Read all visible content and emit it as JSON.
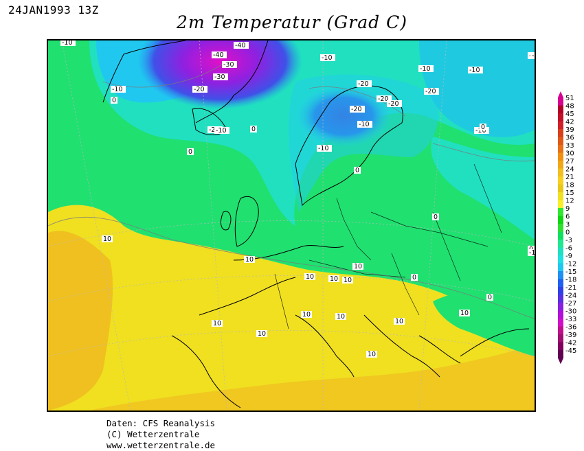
{
  "header": {
    "date": "24JAN1993 13Z",
    "title": "2m Temperatur (Grad C)"
  },
  "credits": {
    "line1": "Daten: CFS Reanalysis",
    "line2": "(C) Wetterzentrale",
    "line3": "www.wetterzentrale.de"
  },
  "legend": {
    "values": [
      "51",
      "48",
      "45",
      "42",
      "39",
      "36",
      "33",
      "30",
      "27",
      "24",
      "21",
      "18",
      "15",
      "12",
      "9",
      "6",
      "3",
      "0",
      "-3",
      "-6",
      "-9",
      "-12",
      "-15",
      "-18",
      "-21",
      "-24",
      "-27",
      "-30",
      "-33",
      "-36",
      "-39",
      "-42",
      "-45"
    ],
    "colors": [
      "#d80090",
      "#b0002a",
      "#c0102a",
      "#d0202a",
      "#d8401a",
      "#e05818",
      "#e87018",
      "#f09010",
      "#f0a818",
      "#f0c020",
      "#f8d020",
      "#e8c818",
      "#f0e020",
      "#f8f028",
      "#30e830",
      "#10d810",
      "#30e030",
      "#10e060",
      "#20e890",
      "#20e0c0",
      "#20e0e0",
      "#20c8f0",
      "#2090f0",
      "#2060f0",
      "#3040e8",
      "#5830e0",
      "#8820e0",
      "#b010d8",
      "#d010c8",
      "#c0108c",
      "#a01070",
      "#800060",
      "#600050"
    ]
  },
  "map": {
    "isotherm_labels": [
      "-10",
      "-40",
      "-40",
      "-30",
      "-30",
      "-20",
      "-10",
      "-10",
      "-10",
      "-10",
      "-10",
      "-20",
      "-20",
      "-20",
      "-20",
      "-20",
      "-10",
      "-10",
      "-10",
      "-10",
      "0",
      "0",
      "0",
      "0",
      "0",
      "0",
      "0",
      "-20",
      "-10",
      "10",
      "10",
      "10",
      "10",
      "10",
      "10",
      "10",
      "10",
      "10",
      "10",
      "10",
      "10",
      "10",
      "0",
      "0",
      "-10"
    ]
  }
}
